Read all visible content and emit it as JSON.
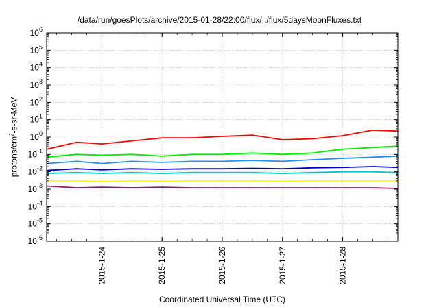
{
  "chart_data": {
    "type": "line",
    "title": "/data/run/goesPlots/archive/2015-01-28/22:00/flux/../flux/5daysMoonFluxes.txt",
    "xlabel": "Coordinated Universal Time (UTC)",
    "ylabel": {
      "prefix": "protons/cm",
      "sup": "2",
      "suffix": "-s-sr-MeV"
    },
    "y_scale": "log",
    "ylim": [
      1e-06,
      1000000.0
    ],
    "y_ticks": [
      {
        "base": "10",
        "exp": "-6",
        "value": 1e-06
      },
      {
        "base": "10",
        "exp": "-5",
        "value": 1e-05
      },
      {
        "base": "10",
        "exp": "-4",
        "value": 0.0001
      },
      {
        "base": "10",
        "exp": "-3",
        "value": 0.001
      },
      {
        "base": "10",
        "exp": "-2",
        "value": 0.01
      },
      {
        "base": "10",
        "exp": "-1",
        "value": 0.1
      },
      {
        "base": "10",
        "exp": "0",
        "value": 1
      },
      {
        "base": "10",
        "exp": "1",
        "value": 10
      },
      {
        "base": "10",
        "exp": "2",
        "value": 100
      },
      {
        "base": "10",
        "exp": "3",
        "value": 1000
      },
      {
        "base": "10",
        "exp": "4",
        "value": 10000
      },
      {
        "base": "10",
        "exp": "5",
        "value": 100000
      },
      {
        "base": "10",
        "exp": "6",
        "value": 1000000
      }
    ],
    "xlim": [
      "2015-01-23 02:00",
      "2015-01-28 22:00"
    ],
    "x_ticks": [
      "2015-1-24",
      "2015-1-25",
      "2015-1-26",
      "2015-1-27",
      "2015-1-28"
    ],
    "grid": true,
    "legend": "none",
    "series": [
      {
        "color": "#ff0000",
        "x": [
          "2015-01-23 02:00",
          "2015-01-23 14:00",
          "2015-01-24 00:00",
          "2015-01-24 12:00",
          "2015-01-25 00:00",
          "2015-01-25 12:00",
          "2015-01-26 00:00",
          "2015-01-26 12:00",
          "2015-01-27 00:00",
          "2015-01-27 12:00",
          "2015-01-28 00:00",
          "2015-01-28 12:00",
          "2015-01-28 22:00"
        ],
        "y": [
          0.2,
          0.5,
          0.4,
          0.6,
          0.9,
          0.9,
          1.1,
          1.3,
          0.7,
          0.8,
          1.2,
          2.5,
          2.2
        ]
      },
      {
        "color": "#00ee00",
        "x": [
          "2015-01-23 02:00",
          "2015-01-23 14:00",
          "2015-01-24 00:00",
          "2015-01-24 12:00",
          "2015-01-25 00:00",
          "2015-01-25 12:00",
          "2015-01-26 00:00",
          "2015-01-26 12:00",
          "2015-01-27 00:00",
          "2015-01-27 12:00",
          "2015-01-28 00:00",
          "2015-01-28 12:00",
          "2015-01-28 22:00"
        ],
        "y": [
          0.07,
          0.1,
          0.09,
          0.1,
          0.08,
          0.1,
          0.1,
          0.12,
          0.1,
          0.12,
          0.2,
          0.25,
          0.3
        ]
      },
      {
        "color": "#1e90ff",
        "x": [
          "2015-01-23 02:00",
          "2015-01-23 14:00",
          "2015-01-24 00:00",
          "2015-01-24 12:00",
          "2015-01-25 00:00",
          "2015-01-25 12:00",
          "2015-01-26 00:00",
          "2015-01-26 12:00",
          "2015-01-27 00:00",
          "2015-01-27 12:00",
          "2015-01-28 00:00",
          "2015-01-28 12:00",
          "2015-01-28 22:00"
        ],
        "y": [
          0.03,
          0.04,
          0.03,
          0.04,
          0.035,
          0.04,
          0.04,
          0.045,
          0.04,
          0.05,
          0.06,
          0.07,
          0.08
        ]
      },
      {
        "color": "#0000cd",
        "x": [
          "2015-01-23 02:00",
          "2015-01-23 14:00",
          "2015-01-24 00:00",
          "2015-01-24 12:00",
          "2015-01-25 00:00",
          "2015-01-25 12:00",
          "2015-01-26 00:00",
          "2015-01-26 12:00",
          "2015-01-27 00:00",
          "2015-01-27 12:00",
          "2015-01-28 00:00",
          "2015-01-28 12:00",
          "2015-01-28 22:00"
        ],
        "y": [
          0.012,
          0.015,
          0.013,
          0.015,
          0.014,
          0.015,
          0.015,
          0.016,
          0.015,
          0.017,
          0.018,
          0.02,
          0.018
        ]
      },
      {
        "color": "#00c8c8",
        "x": [
          "2015-01-23 02:00",
          "2015-01-23 14:00",
          "2015-01-24 00:00",
          "2015-01-24 12:00",
          "2015-01-25 00:00",
          "2015-01-25 12:00",
          "2015-01-26 00:00",
          "2015-01-26 12:00",
          "2015-01-27 00:00",
          "2015-01-27 12:00",
          "2015-01-28 00:00",
          "2015-01-28 12:00",
          "2015-01-28 22:00"
        ],
        "y": [
          0.008,
          0.009,
          0.008,
          0.009,
          0.008,
          0.009,
          0.009,
          0.009,
          0.008,
          0.009,
          0.01,
          0.01,
          0.009
        ]
      },
      {
        "color": "#ffff00",
        "x": [
          "2015-01-23 02:00",
          "2015-01-23 14:00",
          "2015-01-24 00:00",
          "2015-01-24 12:00",
          "2015-01-25 00:00",
          "2015-01-25 12:00",
          "2015-01-26 00:00",
          "2015-01-26 12:00",
          "2015-01-27 00:00",
          "2015-01-27 12:00",
          "2015-01-28 00:00",
          "2015-01-28 12:00",
          "2015-01-28 22:00"
        ],
        "y": [
          0.003,
          0.003,
          0.0028,
          0.003,
          0.0029,
          0.003,
          0.003,
          0.003,
          0.0029,
          0.003,
          0.003,
          0.003,
          0.003
        ]
      },
      {
        "color": "#8b1c62",
        "x": [
          "2015-01-23 02:00",
          "2015-01-23 14:00",
          "2015-01-24 00:00",
          "2015-01-24 12:00",
          "2015-01-25 00:00",
          "2015-01-25 12:00",
          "2015-01-26 00:00",
          "2015-01-26 12:00",
          "2015-01-27 00:00",
          "2015-01-27 12:00",
          "2015-01-28 00:00",
          "2015-01-28 12:00",
          "2015-01-28 22:00"
        ],
        "y": [
          0.0015,
          0.0012,
          0.0013,
          0.0012,
          0.0013,
          0.0012,
          0.0012,
          0.0012,
          0.0012,
          0.0012,
          0.0012,
          0.0012,
          0.0011
        ]
      }
    ]
  }
}
